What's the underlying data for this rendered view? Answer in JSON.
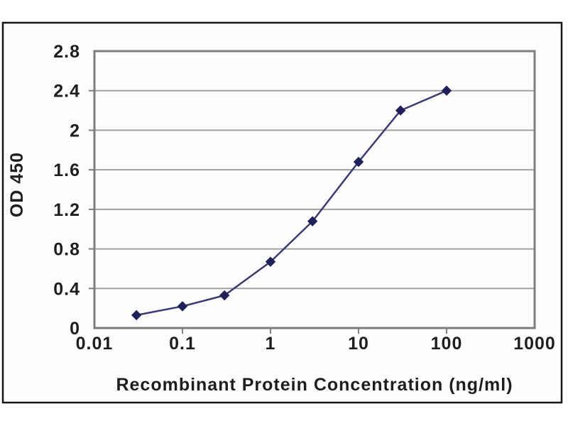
{
  "chart_data": {
    "type": "line",
    "title": "",
    "xlabel": "Recombinant Protein Concentration (ng/ml)",
    "ylabel": "OD 450",
    "x_scale": "log",
    "x": [
      0.03,
      0.1,
      0.3,
      1,
      3,
      10,
      30,
      100
    ],
    "y": [
      0.13,
      0.22,
      0.33,
      0.67,
      1.08,
      1.68,
      2.2,
      2.4
    ],
    "x_ticks": [
      0.01,
      0.1,
      1,
      10,
      100,
      1000
    ],
    "x_tick_labels": [
      "0.01",
      "0.1",
      "1",
      "10",
      "100",
      "1000"
    ],
    "y_ticks": [
      0,
      0.4,
      0.8,
      1.2,
      1.6,
      2,
      2.4,
      2.8
    ],
    "y_tick_labels": [
      "0",
      "0.4",
      "0.8",
      "1.2",
      "1.6",
      "2",
      "2.4",
      "2.8"
    ],
    "xlim": [
      0.01,
      1000
    ],
    "ylim": [
      0,
      2.8
    ],
    "grid": "horizontal",
    "legend": "none",
    "marker": "diamond",
    "colors": {
      "line": "#3b3b72",
      "marker": "#20205a",
      "grid": "#a0a0a0",
      "axis_box": "#7d7d7d",
      "text": "#1e1e1e",
      "frame_border": "#161616",
      "card_background": "#fdfdfd",
      "page_background": "#ffffff"
    }
  }
}
